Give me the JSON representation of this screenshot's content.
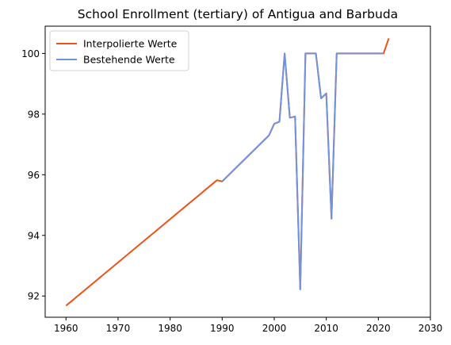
{
  "chart_data": {
    "type": "line",
    "title": "School Enrollment (tertiary) of Antigua and Barbuda",
    "xlabel": "",
    "ylabel": "",
    "xlim": [
      1956,
      2030
    ],
    "ylim": [
      91.3,
      100.9
    ],
    "xticks": [
      1960,
      1970,
      1980,
      1990,
      2000,
      2010,
      2020,
      2030
    ],
    "yticks": [
      92,
      94,
      96,
      98,
      100
    ],
    "grid": false,
    "legend_position": "top-left",
    "series": [
      {
        "name": "Interpolierte Werte",
        "color": "#f0501a",
        "points": [
          [
            1960,
            91.68
          ],
          [
            1989,
            95.82
          ],
          [
            1990,
            95.78
          ],
          [
            1999,
            97.3
          ],
          [
            2000,
            97.68
          ],
          [
            2001,
            97.75
          ],
          [
            2002,
            100.0
          ],
          [
            2003,
            97.88
          ],
          [
            2004,
            97.92
          ],
          [
            2005,
            92.22
          ],
          [
            2006,
            100.0
          ],
          [
            2007,
            100.0
          ],
          [
            2008,
            100.0
          ],
          [
            2009,
            98.52
          ],
          [
            2010,
            98.68
          ],
          [
            2011,
            94.55
          ],
          [
            2012,
            100.0
          ],
          [
            2021,
            100.0
          ],
          [
            2022,
            100.5
          ]
        ]
      },
      {
        "name": "Bestehende Werte",
        "color": "#6f93e0",
        "points": [
          [
            1990,
            95.78
          ],
          [
            1999,
            97.3
          ],
          [
            2000,
            97.68
          ],
          [
            2001,
            97.75
          ],
          [
            2002,
            100.0
          ],
          [
            2003,
            97.88
          ],
          [
            2004,
            97.92
          ],
          [
            2005,
            92.22
          ],
          [
            2006,
            100.0
          ],
          [
            2007,
            100.0
          ],
          [
            2008,
            100.0
          ],
          [
            2009,
            98.52
          ],
          [
            2010,
            98.68
          ],
          [
            2011,
            94.55
          ],
          [
            2012,
            100.0
          ],
          [
            2021,
            100.0
          ]
        ]
      }
    ]
  }
}
